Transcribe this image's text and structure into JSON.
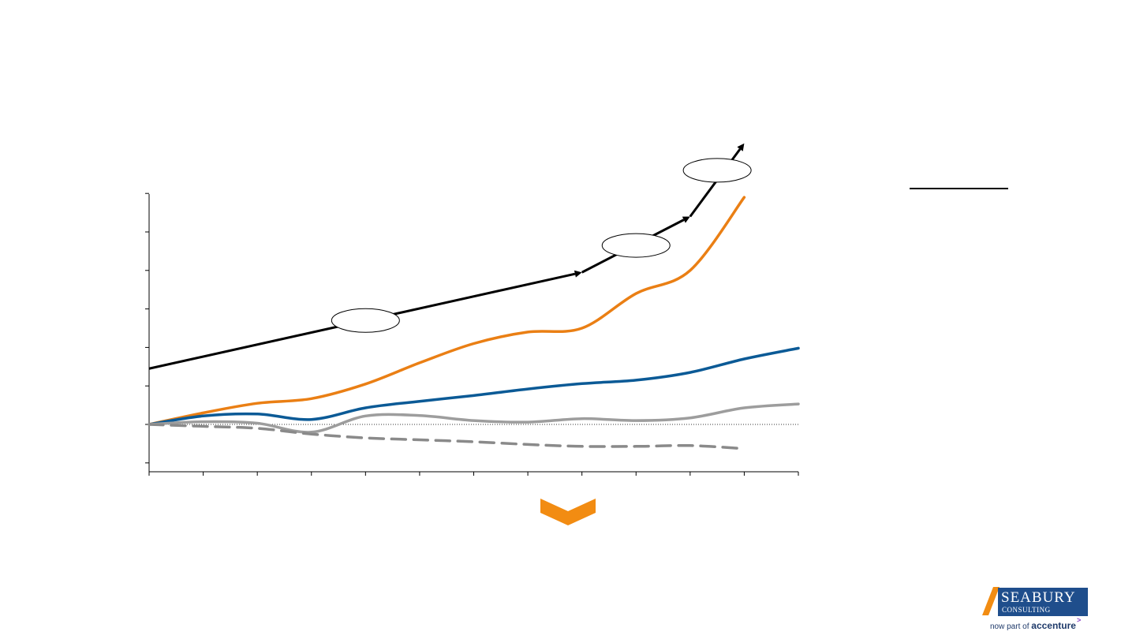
{
  "chart_data": {
    "type": "line",
    "title": "",
    "xlabel": "",
    "ylabel": "",
    "x": [
      0,
      1,
      2,
      3,
      4,
      5,
      6,
      7,
      8,
      9,
      10,
      11,
      12
    ],
    "xlim": [
      0,
      12
    ],
    "ylim": [
      -1.1,
      6.0
    ],
    "zero_line": 0,
    "x_tick_count": 13,
    "y_tick_values": [
      -1,
      0,
      1,
      2,
      3,
      4,
      5,
      6
    ],
    "tick_labels_visible": false,
    "legend": "none",
    "series": [
      {
        "color": "#ea7f14",
        "style": "solid",
        "points": [
          [
            0,
            0
          ],
          [
            1,
            0.3
          ],
          [
            2,
            0.55
          ],
          [
            3,
            0.67
          ],
          [
            4,
            1.05
          ],
          [
            5,
            1.6
          ],
          [
            6,
            2.1
          ],
          [
            7,
            2.4
          ],
          [
            8,
            2.5
          ],
          [
            9,
            3.4
          ],
          [
            10,
            4.0
          ],
          [
            11,
            5.9
          ]
        ]
      },
      {
        "color": "#0b5a96",
        "style": "solid",
        "points": [
          [
            0,
            0
          ],
          [
            1,
            0.22
          ],
          [
            2,
            0.27
          ],
          [
            3,
            0.13
          ],
          [
            4,
            0.43
          ],
          [
            5,
            0.6
          ],
          [
            6,
            0.75
          ],
          [
            7,
            0.92
          ],
          [
            8,
            1.06
          ],
          [
            9,
            1.15
          ],
          [
            10,
            1.35
          ],
          [
            11,
            1.7
          ],
          [
            12,
            1.98
          ]
        ]
      },
      {
        "color": "#9d9d9d",
        "style": "solid",
        "points": [
          [
            0,
            0
          ],
          [
            1,
            0.07
          ],
          [
            2,
            0.03
          ],
          [
            3,
            -0.2
          ],
          [
            4,
            0.22
          ],
          [
            5,
            0.23
          ],
          [
            6,
            0.1
          ],
          [
            7,
            0.06
          ],
          [
            8,
            0.15
          ],
          [
            9,
            0.1
          ],
          [
            10,
            0.17
          ],
          [
            11,
            0.43
          ],
          [
            12,
            0.53
          ]
        ]
      },
      {
        "color": "#8a8a8a",
        "style": "dashed",
        "points": [
          [
            0,
            0
          ],
          [
            1,
            -0.05
          ],
          [
            2,
            -0.1
          ],
          [
            3,
            -0.25
          ],
          [
            4,
            -0.35
          ],
          [
            5,
            -0.4
          ],
          [
            6,
            -0.45
          ],
          [
            7,
            -0.52
          ],
          [
            8,
            -0.57
          ],
          [
            9,
            -0.57
          ],
          [
            10,
            -0.55
          ],
          [
            11,
            -0.63
          ]
        ]
      }
    ],
    "trend_arrow": {
      "color": "#000000",
      "segments": [
        [
          [
            0,
            1.45
          ],
          [
            8,
            3.95
          ]
        ],
        [
          [
            8,
            3.95
          ],
          [
            10,
            5.4
          ]
        ],
        [
          [
            10,
            5.4
          ],
          [
            11,
            7.3
          ]
        ]
      ]
    },
    "ellipse_callouts": [
      {
        "x": 4.0,
        "y": 2.7,
        "label": ""
      },
      {
        "x": 9.0,
        "y": 4.65,
        "label": ""
      },
      {
        "x": 10.5,
        "y": 6.6,
        "label": ""
      }
    ]
  },
  "legend_rule_color": "#000000",
  "chevron_color": "#f28c12",
  "logo": {
    "name": "SEABURY",
    "subtitle": "CONSULTING",
    "tagline_prefix": "now part of ",
    "tagline_brand": "accenture",
    "stripe_color": "#f28c12",
    "box_color": "#1f4e8c"
  }
}
